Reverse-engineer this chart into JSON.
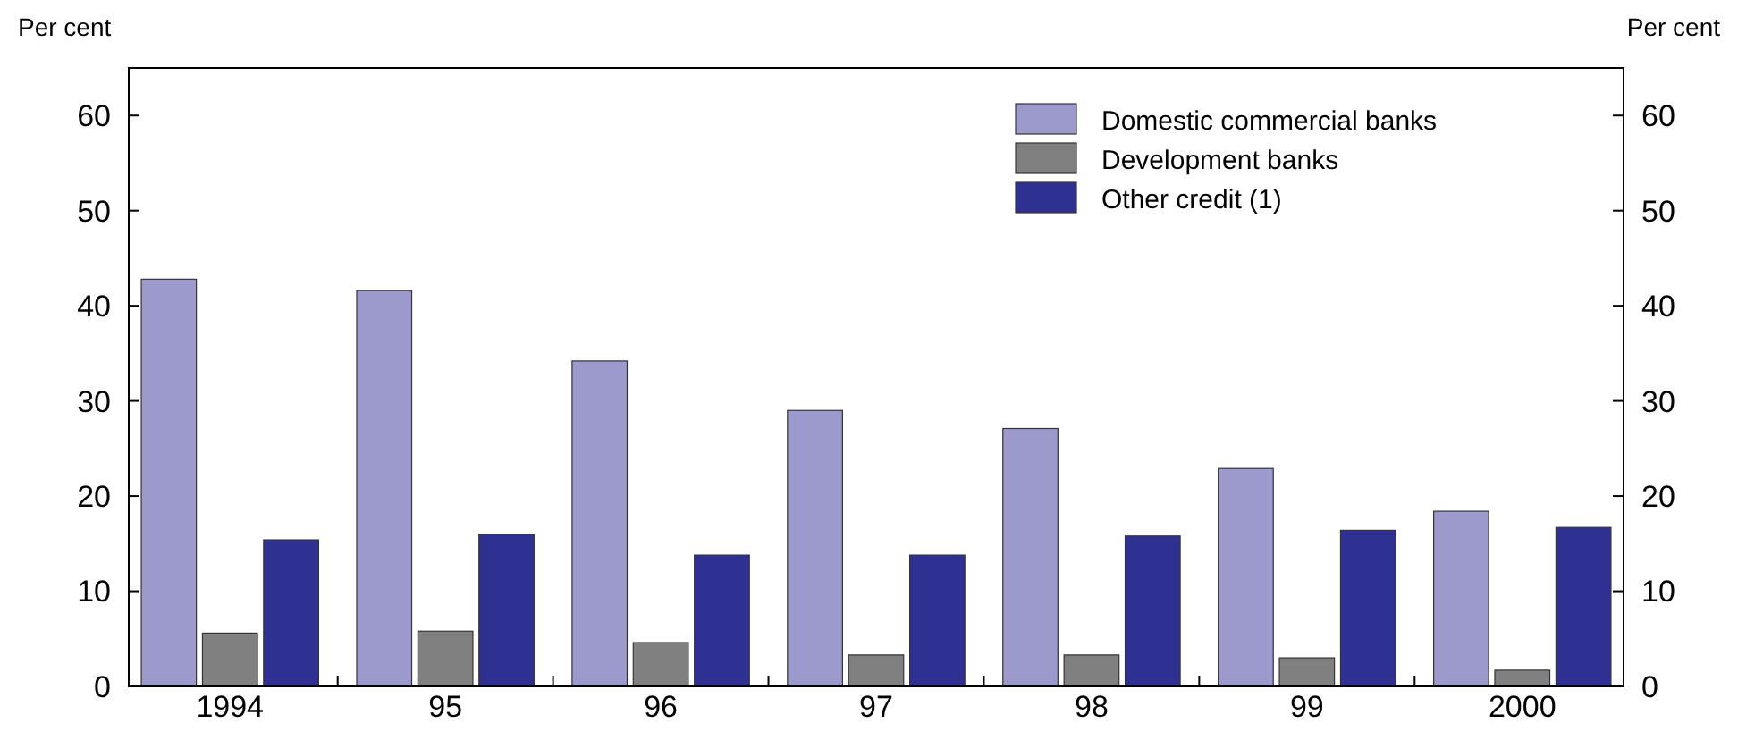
{
  "chart_data": {
    "type": "bar",
    "ylabel": "Per cent",
    "y2label": "Per cent",
    "categories": [
      "1994",
      "95",
      "96",
      "97",
      "98",
      "99",
      "2000"
    ],
    "series": [
      {
        "name": "Domestic commercial banks",
        "color": "#9c99cc",
        "values": [
          42.8,
          41.6,
          34.2,
          29.0,
          27.1,
          22.9,
          18.4
        ]
      },
      {
        "name": "Development banks",
        "color": "#808080",
        "values": [
          5.6,
          5.8,
          4.6,
          3.3,
          3.3,
          3.0,
          1.7
        ]
      },
      {
        "name": "Other credit (1)",
        "color": "#2e3192",
        "values": [
          15.4,
          16.0,
          13.8,
          13.8,
          15.8,
          16.4,
          16.7
        ]
      }
    ],
    "ylim": [
      0,
      65
    ],
    "yticks": [
      0,
      10,
      20,
      30,
      40,
      50,
      60
    ],
    "y2lim": [
      0,
      65
    ],
    "y2ticks": [
      0,
      10,
      20,
      30,
      40,
      50,
      60
    ],
    "grid": false,
    "legend": "top right"
  }
}
